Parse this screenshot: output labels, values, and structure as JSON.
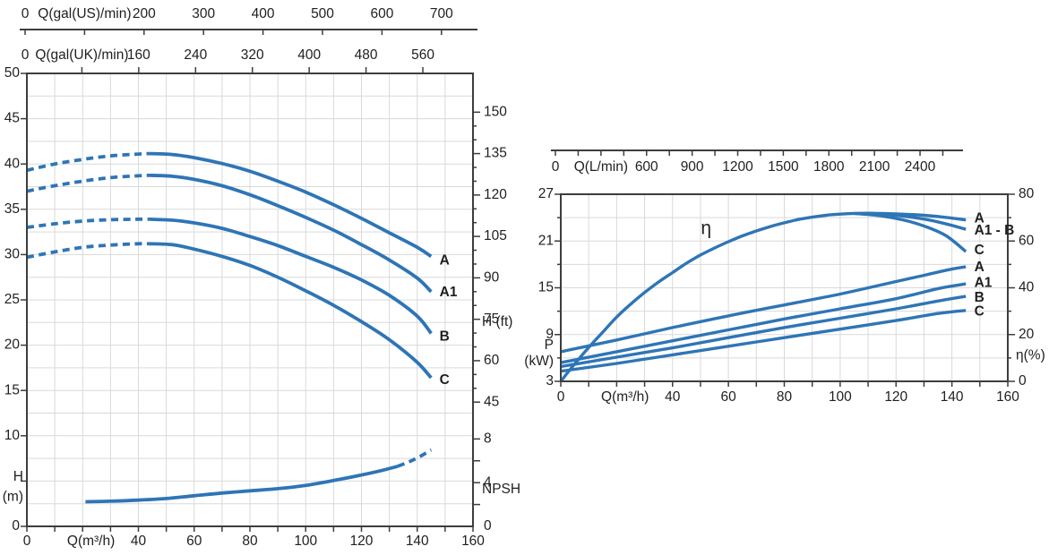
{
  "colors": {
    "curve": "#2e75b6",
    "grid": "#d9d9d9",
    "axis": "#3d3d3d",
    "text": "#1f1f1f",
    "background": "#ffffff"
  },
  "chart_data": [
    {
      "id": "head-capacity-npsh",
      "type": "line",
      "title": "",
      "x_bottom": {
        "unit": "Q(m³/h)",
        "min": 0,
        "max": 160,
        "tick_step": 10,
        "labeled": [
          0,
          40,
          60,
          80,
          100,
          120,
          140,
          160
        ],
        "unit_at": 23
      },
      "y_left": {
        "unit_lines": [
          "H",
          "(m)"
        ],
        "min": 0,
        "max": 50,
        "tick_step": 5,
        "grid_step": 2.5,
        "labeled": [
          50,
          45,
          40,
          35,
          30,
          25,
          20,
          15,
          10,
          0
        ]
      },
      "x_top_us": {
        "unit": "Q(gal(US)/min)",
        "tick_step": 100,
        "max_tick": 700,
        "labeled": [
          0,
          200,
          300,
          400,
          500,
          600,
          700
        ],
        "unit_at": 100
      },
      "x_top_uk": {
        "unit": "Q(gal(UK)/min)",
        "tick_step": 80,
        "max_tick": 560,
        "labeled": [
          0,
          160,
          240,
          320,
          400,
          480,
          560
        ],
        "unit_at": 80
      },
      "y_right_ft": {
        "unit": "H (ft)",
        "tick_step": 5,
        "major_step": 15,
        "min_tick": 45,
        "max_tick": 150,
        "labeled": [
          150,
          135,
          120,
          105,
          90,
          75,
          60,
          45
        ],
        "unit_at": 74
      },
      "y_right_npsh": {
        "unit": "NPSH (m)",
        "tick_step": 2,
        "max_tick": 8,
        "labeled": [
          8,
          4,
          0
        ],
        "unit_at": 3.35
      },
      "series": [
        {
          "name": "A",
          "axis": "H",
          "dash_until": 44,
          "points": [
            [
              0,
              39.3
            ],
            [
              10,
              40.0
            ],
            [
              20,
              40.5
            ],
            [
              30,
              40.9
            ],
            [
              40,
              41.1
            ],
            [
              44,
              41.15
            ],
            [
              52,
              41.05
            ],
            [
              60,
              40.7
            ],
            [
              70,
              40.05
            ],
            [
              80,
              39.2
            ],
            [
              90,
              38.1
            ],
            [
              100,
              36.9
            ],
            [
              110,
              35.5
            ],
            [
              120,
              34.0
            ],
            [
              130,
              32.4
            ],
            [
              140,
              30.8
            ],
            [
              145,
              29.8
            ]
          ]
        },
        {
          "name": "A1",
          "axis": "H",
          "dash_until": 44,
          "points": [
            [
              0,
              37.0
            ],
            [
              10,
              37.6
            ],
            [
              20,
              38.1
            ],
            [
              30,
              38.5
            ],
            [
              40,
              38.7
            ],
            [
              44,
              38.75
            ],
            [
              52,
              38.65
            ],
            [
              60,
              38.3
            ],
            [
              70,
              37.6
            ],
            [
              80,
              36.6
            ],
            [
              90,
              35.4
            ],
            [
              100,
              34.1
            ],
            [
              110,
              32.7
            ],
            [
              120,
              31.1
            ],
            [
              130,
              29.4
            ],
            [
              140,
              27.4
            ],
            [
              145,
              25.9
            ]
          ]
        },
        {
          "name": "B",
          "axis": "H",
          "dash_until": 44,
          "points": [
            [
              0,
              33.0
            ],
            [
              10,
              33.4
            ],
            [
              20,
              33.7
            ],
            [
              30,
              33.85
            ],
            [
              40,
              33.9
            ],
            [
              44,
              33.9
            ],
            [
              52,
              33.8
            ],
            [
              60,
              33.5
            ],
            [
              70,
              32.9
            ],
            [
              80,
              32.0
            ],
            [
              90,
              31.0
            ],
            [
              100,
              29.8
            ],
            [
              110,
              28.6
            ],
            [
              120,
              27.2
            ],
            [
              130,
              25.5
            ],
            [
              140,
              23.2
            ],
            [
              145,
              21.3
            ]
          ]
        },
        {
          "name": "C",
          "axis": "H",
          "dash_until": 44,
          "points": [
            [
              0,
              29.7
            ],
            [
              10,
              30.3
            ],
            [
              20,
              30.8
            ],
            [
              30,
              31.05
            ],
            [
              40,
              31.2
            ],
            [
              44,
              31.2
            ],
            [
              52,
              31.1
            ],
            [
              60,
              30.6
            ],
            [
              70,
              29.8
            ],
            [
              80,
              28.8
            ],
            [
              90,
              27.5
            ],
            [
              100,
              26.0
            ],
            [
              110,
              24.4
            ],
            [
              120,
              22.6
            ],
            [
              130,
              20.6
            ],
            [
              140,
              18.1
            ],
            [
              145,
              16.4
            ]
          ]
        },
        {
          "name": "NPSH",
          "axis": "NPSH",
          "dash_from": 133,
          "points": [
            [
              21,
              2.25
            ],
            [
              30,
              2.3
            ],
            [
              40,
              2.4
            ],
            [
              50,
              2.55
            ],
            [
              60,
              2.8
            ],
            [
              70,
              3.05
            ],
            [
              80,
              3.25
            ],
            [
              90,
              3.45
            ],
            [
              100,
              3.75
            ],
            [
              110,
              4.2
            ],
            [
              120,
              4.7
            ],
            [
              127,
              5.1
            ],
            [
              133,
              5.5
            ],
            [
              137,
              5.9
            ],
            [
              141,
              6.4
            ],
            [
              145,
              7.0
            ]
          ]
        }
      ],
      "series_labels": [
        {
          "text": "A",
          "x": 148,
          "axis": "H",
          "y": 29.3
        },
        {
          "text": "A1",
          "x": 148,
          "axis": "H",
          "y": 25.8
        },
        {
          "text": "B",
          "x": 148,
          "axis": "H",
          "y": 20.9
        },
        {
          "text": "C",
          "x": 148,
          "axis": "H",
          "y": 16.1
        }
      ]
    },
    {
      "id": "power-efficiency",
      "type": "line",
      "title": "",
      "x_bottom": {
        "unit": "Q(m³/h)",
        "min": 0,
        "max": 160,
        "tick_step": 10,
        "labeled": [
          0,
          40,
          60,
          80,
          100,
          120,
          140,
          160
        ],
        "unit_at": 23
      },
      "y_left": {
        "unit_lines": [
          "P",
          "(kW)"
        ],
        "min": 3,
        "max": 27,
        "tick_step": 3,
        "major_step": 6,
        "grid_step": 3,
        "labeled": [
          27,
          21,
          15,
          9,
          3
        ]
      },
      "y_right": {
        "unit": "η(%)",
        "min": 0,
        "max": 80,
        "tick_step": 10,
        "major_step": 20,
        "labeled": [
          80,
          60,
          40,
          20,
          0
        ],
        "unit_at": 11
      },
      "x_top_lmin": {
        "unit": "Q(L/min)",
        "tick_step": 150,
        "max_tick": 2550,
        "labeled": [
          0,
          600,
          900,
          1200,
          1500,
          1800,
          2100,
          2400
        ],
        "unit_at": 300
      },
      "series": [
        {
          "name": "eta",
          "axis": "eta",
          "points": [
            [
              0,
              0
            ],
            [
              5,
              7.5
            ],
            [
              10,
              14.5
            ],
            [
              15,
              21
            ],
            [
              20,
              27.5
            ],
            [
              25,
              33
            ],
            [
              30,
              38
            ],
            [
              35,
              42.5
            ],
            [
              40,
              46.5
            ],
            [
              45,
              50.5
            ],
            [
              50,
              54
            ],
            [
              55,
              57
            ],
            [
              60,
              59.7
            ],
            [
              65,
              62.2
            ],
            [
              70,
              64.3
            ],
            [
              75,
              66.2
            ],
            [
              80,
              67.8
            ],
            [
              85,
              69.2
            ],
            [
              90,
              70.2
            ],
            [
              95,
              71
            ],
            [
              100,
              71.5
            ],
            [
              105,
              71.8
            ],
            [
              110,
              71.9
            ]
          ]
        },
        {
          "name": "eta-A",
          "axis": "eta",
          "points": [
            [
              110,
              71.9
            ],
            [
              120,
              71.6
            ],
            [
              130,
              71.0
            ],
            [
              138,
              70.1
            ],
            [
              145,
              69.0
            ]
          ]
        },
        {
          "name": "eta-A1-B",
          "axis": "eta",
          "points": [
            [
              110,
              71.9
            ],
            [
              120,
              71.0
            ],
            [
              130,
              69.4
            ],
            [
              138,
              67.3
            ],
            [
              145,
              65.0
            ]
          ]
        },
        {
          "name": "eta-C",
          "axis": "eta",
          "points": [
            [
              105,
              71.8
            ],
            [
              115,
              70.7
            ],
            [
              123,
              68.9
            ],
            [
              131,
              66.0
            ],
            [
              138,
              62.2
            ],
            [
              145,
              55.5
            ]
          ]
        },
        {
          "name": "P-A",
          "axis": "P",
          "points": [
            [
              0,
              6.8
            ],
            [
              20,
              8.3
            ],
            [
              40,
              9.9
            ],
            [
              60,
              11.4
            ],
            [
              80,
              12.8
            ],
            [
              100,
              14.2
            ],
            [
              120,
              15.8
            ],
            [
              130,
              16.6
            ],
            [
              140,
              17.4
            ],
            [
              145,
              17.7
            ]
          ]
        },
        {
          "name": "P-A1",
          "axis": "P",
          "points": [
            [
              0,
              5.4
            ],
            [
              20,
              6.8
            ],
            [
              40,
              8.2
            ],
            [
              60,
              9.6
            ],
            [
              80,
              11.0
            ],
            [
              100,
              12.3
            ],
            [
              120,
              13.6
            ],
            [
              135,
              14.9
            ],
            [
              145,
              15.5
            ]
          ]
        },
        {
          "name": "P-B",
          "axis": "P",
          "points": [
            [
              0,
              4.9
            ],
            [
              20,
              6.1
            ],
            [
              40,
              7.3
            ],
            [
              60,
              8.6
            ],
            [
              80,
              9.9
            ],
            [
              100,
              11.1
            ],
            [
              120,
              12.3
            ],
            [
              135,
              13.3
            ],
            [
              145,
              13.9
            ]
          ]
        },
        {
          "name": "P-C",
          "axis": "P",
          "points": [
            [
              0,
              4.3
            ],
            [
              20,
              5.3
            ],
            [
              40,
              6.4
            ],
            [
              60,
              7.5
            ],
            [
              80,
              8.6
            ],
            [
              100,
              9.7
            ],
            [
              120,
              10.8
            ],
            [
              135,
              11.7
            ],
            [
              145,
              12.1
            ]
          ]
        }
      ],
      "annotations": [
        {
          "text": "η",
          "x": 52,
          "axis": "eta",
          "y": 65,
          "size": 21
        }
      ],
      "series_labels": [
        {
          "text": "A",
          "x": 148,
          "axis": "eta",
          "y": 69.5
        },
        {
          "text": "A1 - B",
          "x": 148,
          "axis": "eta",
          "y": 64.3
        },
        {
          "text": "C",
          "x": 148,
          "axis": "eta",
          "y": 56.0
        },
        {
          "text": "A",
          "x": 148,
          "axis": "P",
          "y": 17.6
        },
        {
          "text": "A1",
          "x": 148,
          "axis": "P",
          "y": 15.6
        },
        {
          "text": "B",
          "x": 148,
          "axis": "P",
          "y": 13.7
        },
        {
          "text": "C",
          "x": 148,
          "axis": "P",
          "y": 11.9
        }
      ]
    }
  ]
}
